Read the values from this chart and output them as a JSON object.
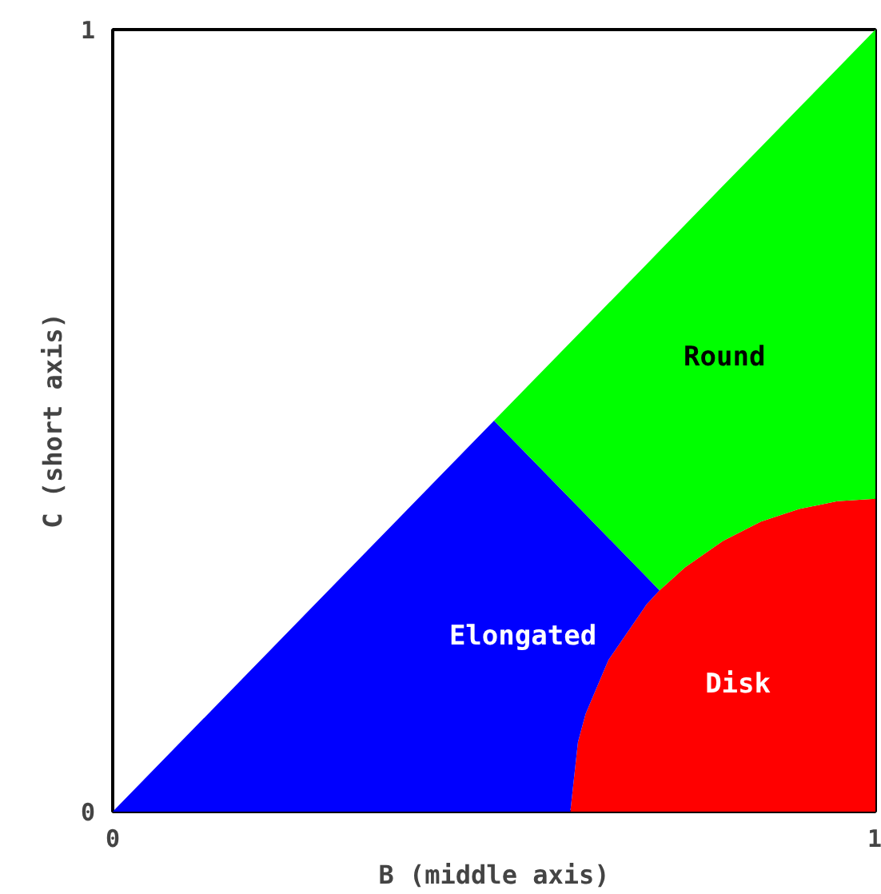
{
  "chart_data": {
    "type": "area",
    "stacked": true,
    "xlabel": "B (middle axis)",
    "ylabel": "C (short axis)",
    "x": [
      0,
      0.25,
      0.5,
      0.6,
      0.61,
      0.62,
      0.65,
      0.7,
      0.717,
      0.75,
      0.8,
      0.85,
      0.9,
      0.95,
      1
    ],
    "xlim": [
      0,
      1
    ],
    "ylim": [
      0,
      1
    ],
    "xticks": [
      0,
      1
    ],
    "yticks": [
      0,
      1
    ],
    "series": [
      {
        "name": "Disk",
        "color": "#ff0000",
        "values": [
          0,
          0,
          0,
          0,
          0.089,
          0.125,
          0.194,
          0.265,
          0.283,
          0.312,
          0.346,
          0.371,
          0.387,
          0.397,
          0.4
        ]
      },
      {
        "name": "Elongated",
        "color": "#0000ff",
        "values": [
          0,
          0.25,
          0.5,
          0.4,
          0.301,
          0.255,
          0.156,
          0.035,
          0,
          0,
          0,
          0,
          0,
          0,
          0
        ]
      },
      {
        "name": "Round",
        "color": "#00ff00",
        "values": [
          0,
          0,
          0,
          0.2,
          0.22,
          0.24,
          0.3,
          0.4,
          0.434,
          0.438,
          0.454,
          0.479,
          0.513,
          0.553,
          0.6
        ]
      }
    ]
  }
}
